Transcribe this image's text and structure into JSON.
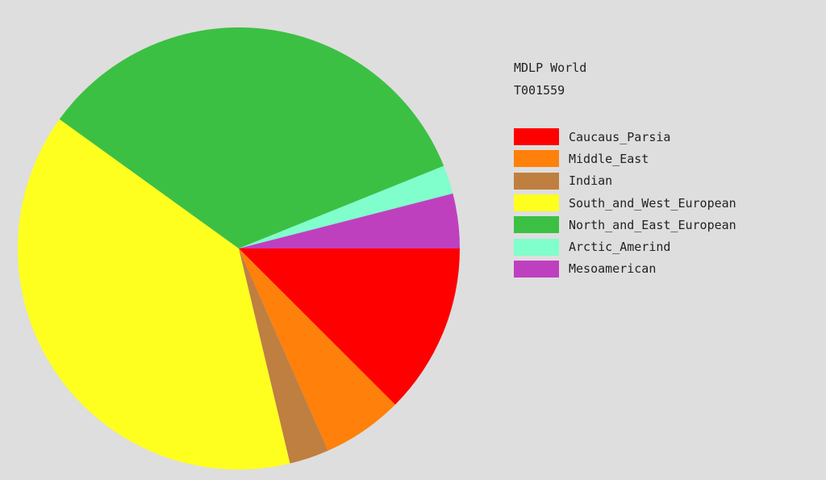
{
  "chart_data": {
    "type": "pie",
    "title": "MDLP World",
    "subtitle": "T001559",
    "start_angle": "3 o'clock, clockwise",
    "legend_position": "right",
    "slices": [
      {
        "label": "Caucaus_Parsia",
        "value": 12.5,
        "color": "#ff0000"
      },
      {
        "label": "Middle_East",
        "value": 5.9,
        "color": "#ff800a"
      },
      {
        "label": "Indian",
        "value": 2.9,
        "color": "#bf7f40"
      },
      {
        "label": "South_and_West_European",
        "value": 38.7,
        "color": "#ffff1f"
      },
      {
        "label": "North_and_East_European",
        "value": 34.0,
        "color": "#3cc043"
      },
      {
        "label": "Arctic_Amerind",
        "value": 2.1,
        "color": "#80ffcc"
      },
      {
        "label": "Mesoamerican",
        "value": 4.0,
        "color": "#bf40bf"
      }
    ]
  }
}
